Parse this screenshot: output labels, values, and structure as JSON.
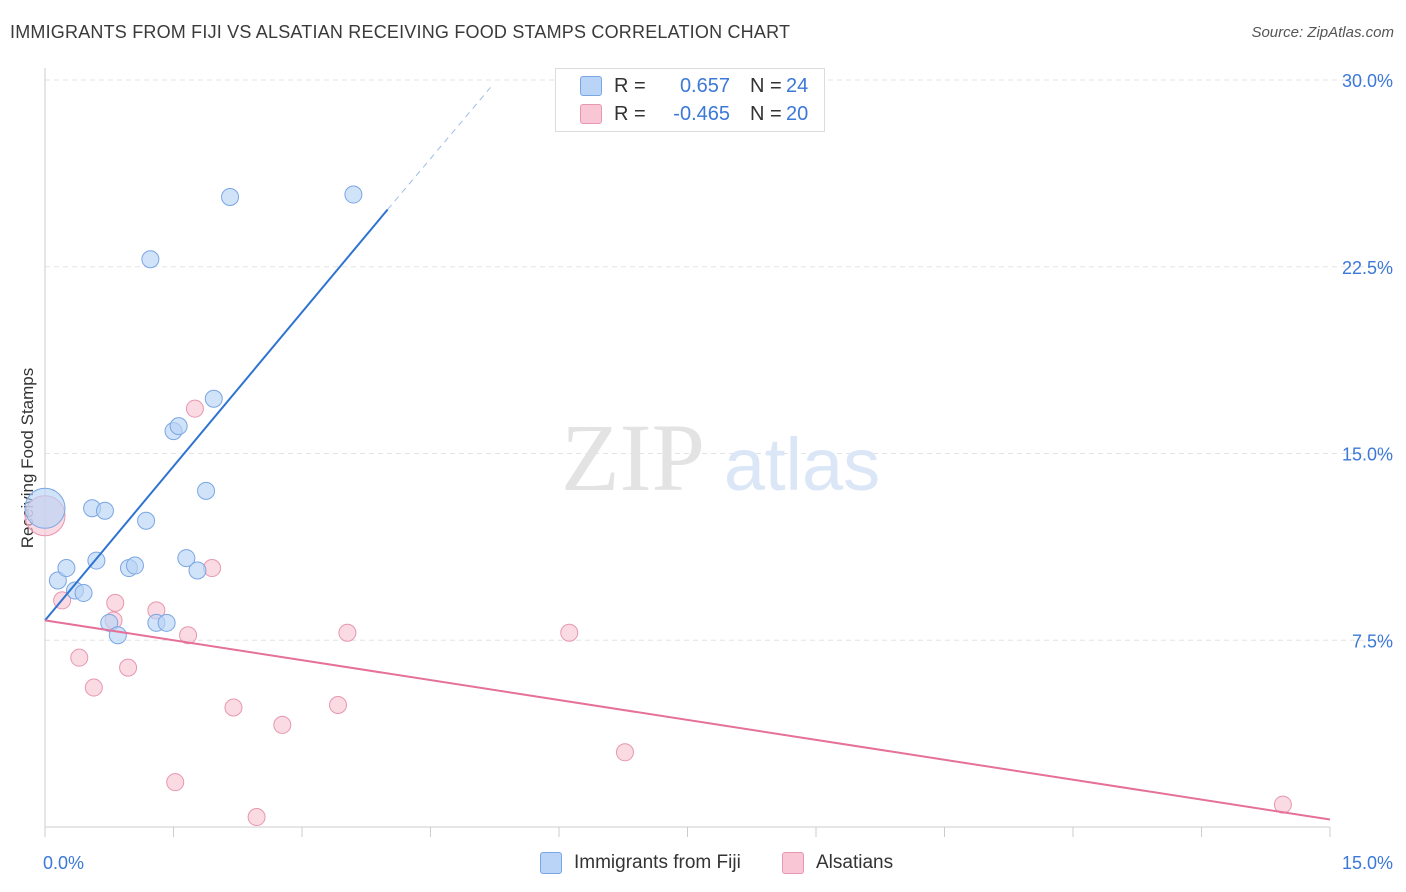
{
  "title": "IMMIGRANTS FROM FIJI VS ALSATIAN RECEIVING FOOD STAMPS CORRELATION CHART",
  "source": "Source: ZipAtlas.com",
  "watermark": {
    "zip": "ZIP",
    "atlas": "atlas"
  },
  "legend_top": {
    "rows": [
      {
        "r_label": "R =",
        "r_value": "0.657",
        "n_label": "N =",
        "n_value": "24"
      },
      {
        "r_label": "R =",
        "r_value": "-0.465",
        "n_label": "N =",
        "n_value": "20"
      }
    ]
  },
  "legend_bottom": {
    "fiji": "Immigrants from Fiji",
    "alsatians": "Alsatians"
  },
  "colors": {
    "fiji_fill": "#b9d4f6",
    "fiji_stroke": "#7aa6e3",
    "fiji_line": "#2f74d0",
    "als_fill": "#f8c6d4",
    "als_stroke": "#e897b0",
    "als_line": "#e5709a",
    "tick_label": "#3b78d8",
    "grid": "#e3e3e3"
  },
  "chart_data": {
    "type": "scatter",
    "ylabel": "Receiving Food Stamps",
    "xlabel": "",
    "xlim": [
      0,
      15
    ],
    "ylim": [
      0,
      30
    ],
    "x_tick_labels": [
      {
        "value": 0,
        "label": "0.0%"
      },
      {
        "value": 15,
        "label": "15.0%"
      }
    ],
    "y_tick_labels": [
      {
        "value": 7.5,
        "label": "7.5%"
      },
      {
        "value": 15,
        "label": "15.0%"
      },
      {
        "value": 22.5,
        "label": "22.5%"
      },
      {
        "value": 30,
        "label": "30.0%"
      }
    ],
    "grid": true,
    "legend_position": "top-center",
    "series": [
      {
        "name": "Immigrants from Fiji",
        "points": [
          [
            0.0,
            12.8,
            20
          ],
          [
            0.15,
            9.9,
            11
          ],
          [
            0.25,
            10.4,
            10
          ],
          [
            0.35,
            9.5,
            10
          ],
          [
            0.45,
            9.4,
            10
          ],
          [
            0.55,
            12.8,
            10
          ],
          [
            0.6,
            10.7,
            10
          ],
          [
            0.7,
            12.7,
            10
          ],
          [
            0.75,
            8.2,
            10
          ],
          [
            0.85,
            7.7,
            10
          ],
          [
            0.98,
            10.4,
            10
          ],
          [
            1.05,
            10.5,
            10
          ],
          [
            1.18,
            12.3,
            10
          ],
          [
            1.23,
            22.8,
            10
          ],
          [
            1.3,
            8.2,
            10
          ],
          [
            1.42,
            8.2,
            10
          ],
          [
            1.5,
            15.9,
            10
          ],
          [
            1.56,
            16.1,
            10
          ],
          [
            1.65,
            10.8,
            10
          ],
          [
            1.78,
            10.3,
            10
          ],
          [
            1.88,
            13.5,
            10
          ],
          [
            1.97,
            17.2,
            10
          ],
          [
            2.16,
            25.3,
            10
          ],
          [
            3.6,
            25.4,
            10
          ]
        ],
        "trend": {
          "x": [
            0.0,
            4.0
          ],
          "y": [
            8.3,
            24.8
          ],
          "dashed_to": [
            5.2,
            29.7
          ]
        }
      },
      {
        "name": "Alsatians",
        "points": [
          [
            0.0,
            12.5,
            18
          ],
          [
            0.2,
            9.1,
            10
          ],
          [
            0.4,
            6.8,
            10
          ],
          [
            0.57,
            5.6,
            10
          ],
          [
            0.8,
            8.3,
            10
          ],
          [
            0.82,
            9.0,
            10
          ],
          [
            0.97,
            6.4,
            10
          ],
          [
            1.3,
            8.7,
            10
          ],
          [
            1.52,
            1.8,
            10
          ],
          [
            1.67,
            7.7,
            10
          ],
          [
            1.75,
            16.8,
            10
          ],
          [
            1.95,
            10.4,
            10
          ],
          [
            2.2,
            4.8,
            10
          ],
          [
            2.47,
            0.4,
            10
          ],
          [
            2.77,
            4.1,
            10
          ],
          [
            3.42,
            4.9,
            10
          ],
          [
            3.53,
            7.8,
            10
          ],
          [
            6.12,
            7.8,
            10
          ],
          [
            6.77,
            3.0,
            10
          ],
          [
            14.45,
            0.9,
            10
          ]
        ],
        "trend": {
          "x": [
            0.0,
            15.0
          ],
          "y": [
            8.3,
            0.3
          ]
        }
      }
    ]
  }
}
